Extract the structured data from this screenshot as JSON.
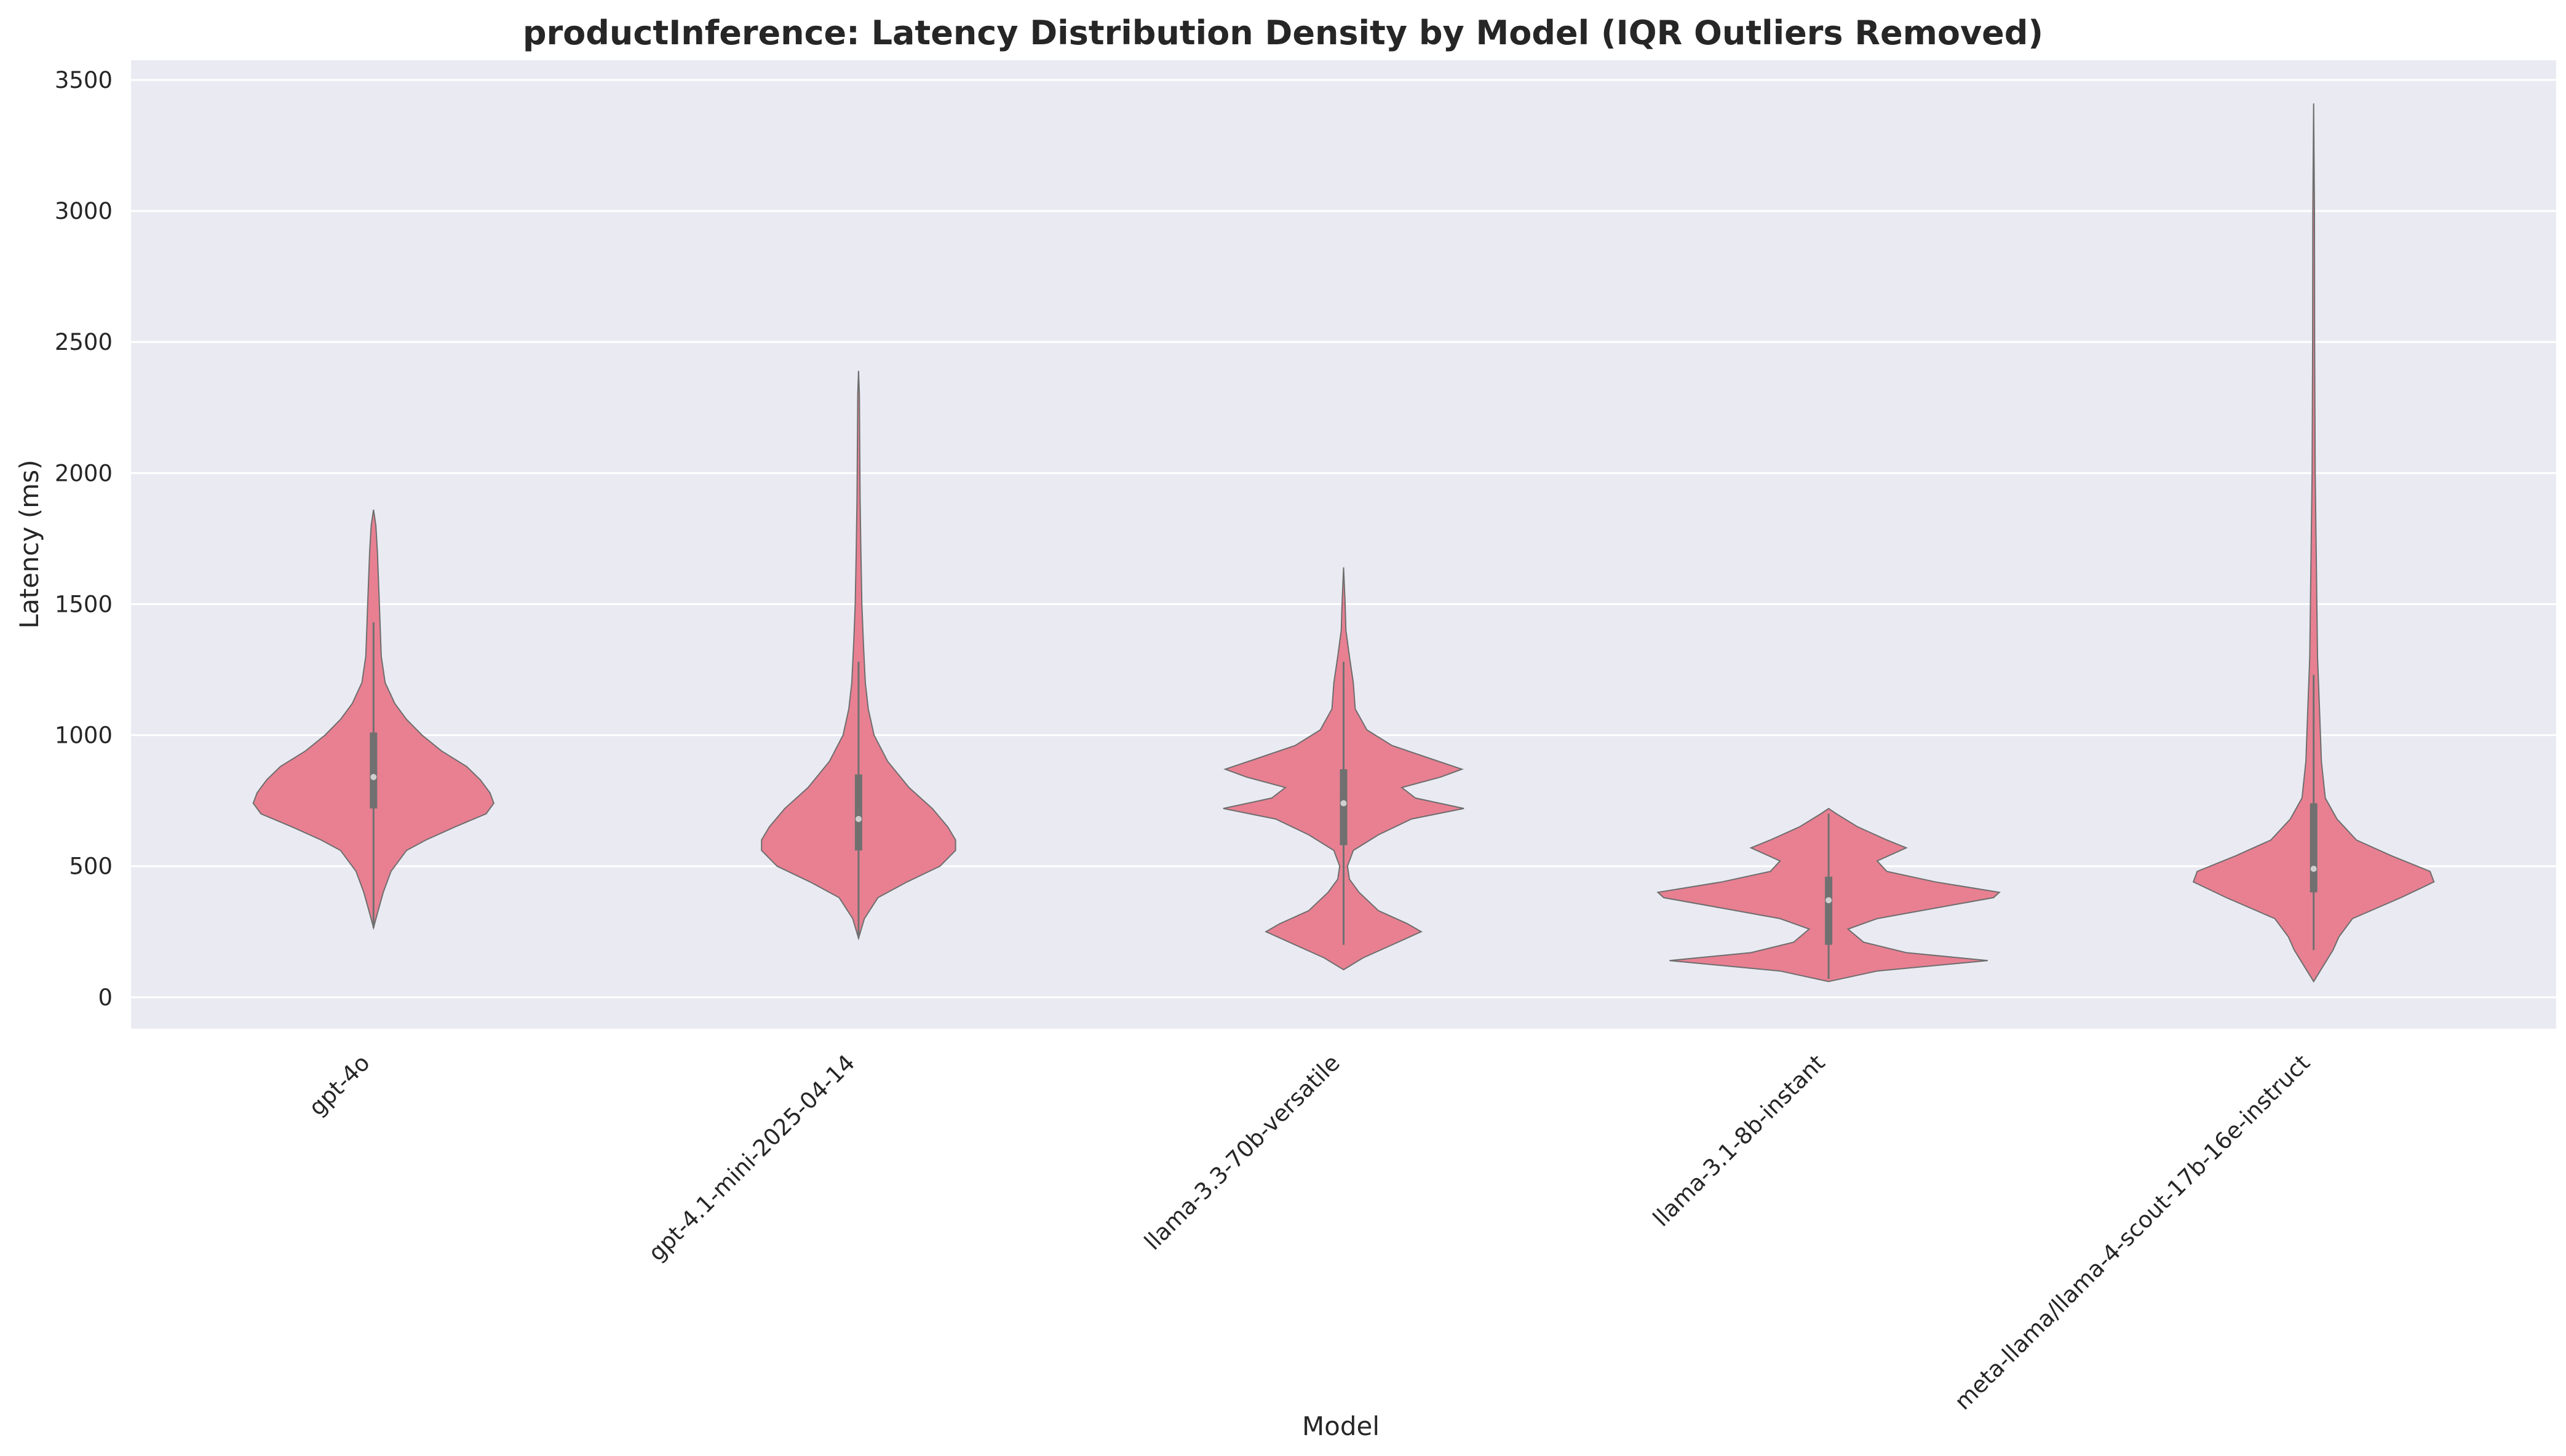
{
  "chart_data": {
    "type": "violin",
    "title": "productInference: Latency Distribution Density by Model (IQR Outliers Removed)",
    "xlabel": "Model",
    "ylabel": "Latency (ms)",
    "ylim": [
      -120,
      3575
    ],
    "yticks": [
      0,
      500,
      1000,
      1500,
      2000,
      2500,
      3000,
      3500
    ],
    "grid": true,
    "colors": {
      "background": "#eaeaf2",
      "grid": "#ffffff",
      "violin_fill": "#e88092",
      "violin_edge": "#6e6e6e",
      "box": "#707070",
      "median": "#cfcfcf"
    },
    "categories": [
      "gpt-4o",
      "gpt-4.1-mini-2025-04-14",
      "llama-3.3-70b-versatile",
      "llama-3.1-8b-instant",
      "meta-llama/llama-4-scout-17b-16e-instruct"
    ],
    "violins": [
      {
        "category": "gpt-4o",
        "min": 265,
        "q1": 720,
        "median": 840,
        "q3": 1010,
        "whisker_low": 265,
        "whisker_high": 1430,
        "max": 1860,
        "profile": [
          [
            265,
            0.0
          ],
          [
            320,
            0.02
          ],
          [
            400,
            0.05
          ],
          [
            480,
            0.09
          ],
          [
            560,
            0.17
          ],
          [
            600,
            0.27
          ],
          [
            650,
            0.42
          ],
          [
            700,
            0.58
          ],
          [
            740,
            0.62
          ],
          [
            780,
            0.6
          ],
          [
            830,
            0.55
          ],
          [
            880,
            0.48
          ],
          [
            940,
            0.35
          ],
          [
            1000,
            0.25
          ],
          [
            1060,
            0.17
          ],
          [
            1120,
            0.11
          ],
          [
            1200,
            0.06
          ],
          [
            1300,
            0.04
          ],
          [
            1400,
            0.035
          ],
          [
            1500,
            0.03
          ],
          [
            1600,
            0.025
          ],
          [
            1700,
            0.02
          ],
          [
            1800,
            0.012
          ],
          [
            1860,
            0.0
          ]
        ]
      },
      {
        "category": "gpt-4.1-mini-2025-04-14",
        "min": 225,
        "q1": 560,
        "median": 680,
        "q3": 850,
        "whisker_low": 225,
        "whisker_high": 1280,
        "max": 2390,
        "profile": [
          [
            225,
            0.0
          ],
          [
            300,
            0.03
          ],
          [
            380,
            0.1
          ],
          [
            440,
            0.25
          ],
          [
            500,
            0.42
          ],
          [
            560,
            0.5
          ],
          [
            600,
            0.5
          ],
          [
            650,
            0.46
          ],
          [
            720,
            0.38
          ],
          [
            800,
            0.26
          ],
          [
            900,
            0.15
          ],
          [
            1000,
            0.08
          ],
          [
            1100,
            0.05
          ],
          [
            1200,
            0.035
          ],
          [
            1350,
            0.025
          ],
          [
            1500,
            0.017
          ],
          [
            1700,
            0.012
          ],
          [
            1900,
            0.008
          ],
          [
            2100,
            0.006
          ],
          [
            2300,
            0.004
          ],
          [
            2390,
            0.0
          ]
        ]
      },
      {
        "category": "llama-3.3-70b-versatile",
        "min": 105,
        "q1": 580,
        "median": 740,
        "q3": 870,
        "whisker_low": 200,
        "whisker_high": 1280,
        "max": 1640,
        "profile": [
          [
            105,
            0.0
          ],
          [
            150,
            0.1
          ],
          [
            200,
            0.25
          ],
          [
            250,
            0.4
          ],
          [
            280,
            0.33
          ],
          [
            330,
            0.18
          ],
          [
            400,
            0.08
          ],
          [
            450,
            0.03
          ],
          [
            500,
            0.02
          ],
          [
            560,
            0.05
          ],
          [
            620,
            0.18
          ],
          [
            680,
            0.35
          ],
          [
            720,
            0.62
          ],
          [
            760,
            0.37
          ],
          [
            800,
            0.3
          ],
          [
            840,
            0.5
          ],
          [
            870,
            0.61
          ],
          [
            910,
            0.45
          ],
          [
            960,
            0.25
          ],
          [
            1020,
            0.12
          ],
          [
            1100,
            0.06
          ],
          [
            1200,
            0.05
          ],
          [
            1300,
            0.03
          ],
          [
            1400,
            0.012
          ],
          [
            1500,
            0.008
          ],
          [
            1640,
            0.0
          ]
        ]
      },
      {
        "category": "llama-3.1-8b-instant",
        "min": 60,
        "q1": 200,
        "median": 370,
        "q3": 460,
        "whisker_low": 70,
        "whisker_high": 700,
        "max": 720,
        "profile": [
          [
            60,
            0.0
          ],
          [
            100,
            0.25
          ],
          [
            140,
            0.82
          ],
          [
            170,
            0.4
          ],
          [
            210,
            0.18
          ],
          [
            260,
            0.1
          ],
          [
            300,
            0.25
          ],
          [
            340,
            0.55
          ],
          [
            380,
            0.85
          ],
          [
            400,
            0.88
          ],
          [
            440,
            0.55
          ],
          [
            480,
            0.3
          ],
          [
            520,
            0.25
          ],
          [
            570,
            0.4
          ],
          [
            600,
            0.3
          ],
          [
            650,
            0.15
          ],
          [
            700,
            0.04
          ],
          [
            720,
            0.0
          ]
        ]
      },
      {
        "category": "meta-llama/llama-4-scout-17b-16e-instruct",
        "min": 60,
        "q1": 400,
        "median": 490,
        "q3": 740,
        "whisker_low": 180,
        "whisker_high": 1230,
        "max": 3410,
        "profile": [
          [
            60,
            0.0
          ],
          [
            120,
            0.05
          ],
          [
            180,
            0.1
          ],
          [
            230,
            0.13
          ],
          [
            300,
            0.2
          ],
          [
            380,
            0.45
          ],
          [
            440,
            0.62
          ],
          [
            480,
            0.6
          ],
          [
            540,
            0.4
          ],
          [
            600,
            0.22
          ],
          [
            680,
            0.12
          ],
          [
            760,
            0.06
          ],
          [
            900,
            0.04
          ],
          [
            1100,
            0.03
          ],
          [
            1300,
            0.02
          ],
          [
            1600,
            0.015
          ],
          [
            2000,
            0.008
          ],
          [
            2500,
            0.005
          ],
          [
            3000,
            0.004
          ],
          [
            3410,
            0.0
          ]
        ]
      }
    ]
  }
}
